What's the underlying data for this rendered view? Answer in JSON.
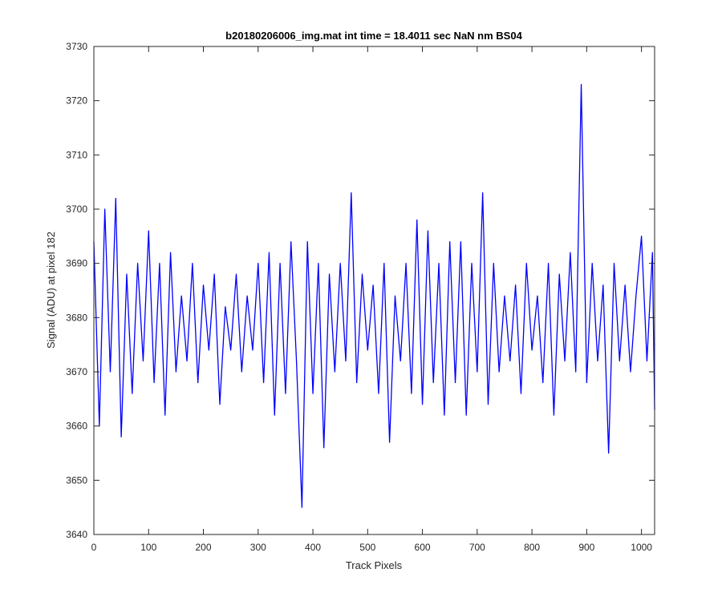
{
  "chart_data": {
    "type": "line",
    "title": "b20180206006_img.mat int time = 18.4011 sec  NaN nm BS04",
    "xlabel": "Track Pixels",
    "ylabel": "Signal (ADU) at pixel 182",
    "xlim": [
      0,
      1024
    ],
    "ylim": [
      3640,
      3730
    ],
    "xticks": [
      0,
      100,
      200,
      300,
      400,
      500,
      600,
      700,
      800,
      900,
      1000
    ],
    "yticks": [
      3640,
      3650,
      3660,
      3670,
      3680,
      3690,
      3700,
      3710,
      3720,
      3730
    ],
    "grid": false,
    "legend": "none",
    "series": [
      {
        "color": "#0000ff",
        "x": [
          0,
          10,
          20,
          30,
          40,
          50,
          60,
          70,
          80,
          90,
          100,
          110,
          120,
          130,
          140,
          150,
          160,
          170,
          180,
          190,
          200,
          210,
          220,
          230,
          240,
          250,
          260,
          270,
          280,
          290,
          300,
          310,
          320,
          330,
          340,
          350,
          360,
          370,
          380,
          390,
          400,
          410,
          420,
          430,
          440,
          450,
          460,
          470,
          480,
          490,
          500,
          510,
          520,
          530,
          540,
          550,
          560,
          570,
          580,
          590,
          600,
          610,
          620,
          630,
          640,
          650,
          660,
          670,
          680,
          690,
          700,
          710,
          720,
          730,
          740,
          750,
          760,
          770,
          780,
          790,
          800,
          810,
          820,
          830,
          840,
          850,
          860,
          870,
          880,
          890,
          900,
          910,
          920,
          930,
          940,
          950,
          960,
          970,
          980,
          990,
          1000,
          1010,
          1020,
          1024
        ],
        "y": [
          3694,
          3660,
          3700,
          3670,
          3702,
          3658,
          3688,
          3666,
          3690,
          3672,
          3696,
          3668,
          3690,
          3662,
          3692,
          3670,
          3684,
          3672,
          3690,
          3668,
          3686,
          3674,
          3688,
          3664,
          3682,
          3674,
          3688,
          3670,
          3684,
          3674,
          3690,
          3668,
          3692,
          3662,
          3690,
          3666,
          3694,
          3672,
          3645,
          3694,
          3666,
          3690,
          3656,
          3688,
          3670,
          3690,
          3672,
          3703,
          3668,
          3688,
          3674,
          3686,
          3666,
          3690,
          3657,
          3684,
          3672,
          3690,
          3666,
          3698,
          3664,
          3696,
          3668,
          3690,
          3662,
          3694,
          3668,
          3694,
          3662,
          3690,
          3670,
          3703,
          3664,
          3690,
          3670,
          3684,
          3672,
          3686,
          3666,
          3690,
          3674,
          3684,
          3668,
          3690,
          3662,
          3688,
          3672,
          3692,
          3670,
          3723,
          3668,
          3690,
          3672,
          3686,
          3655,
          3690,
          3672,
          3686,
          3670,
          3684,
          3695,
          3672,
          3692,
          3663
        ]
      }
    ]
  }
}
